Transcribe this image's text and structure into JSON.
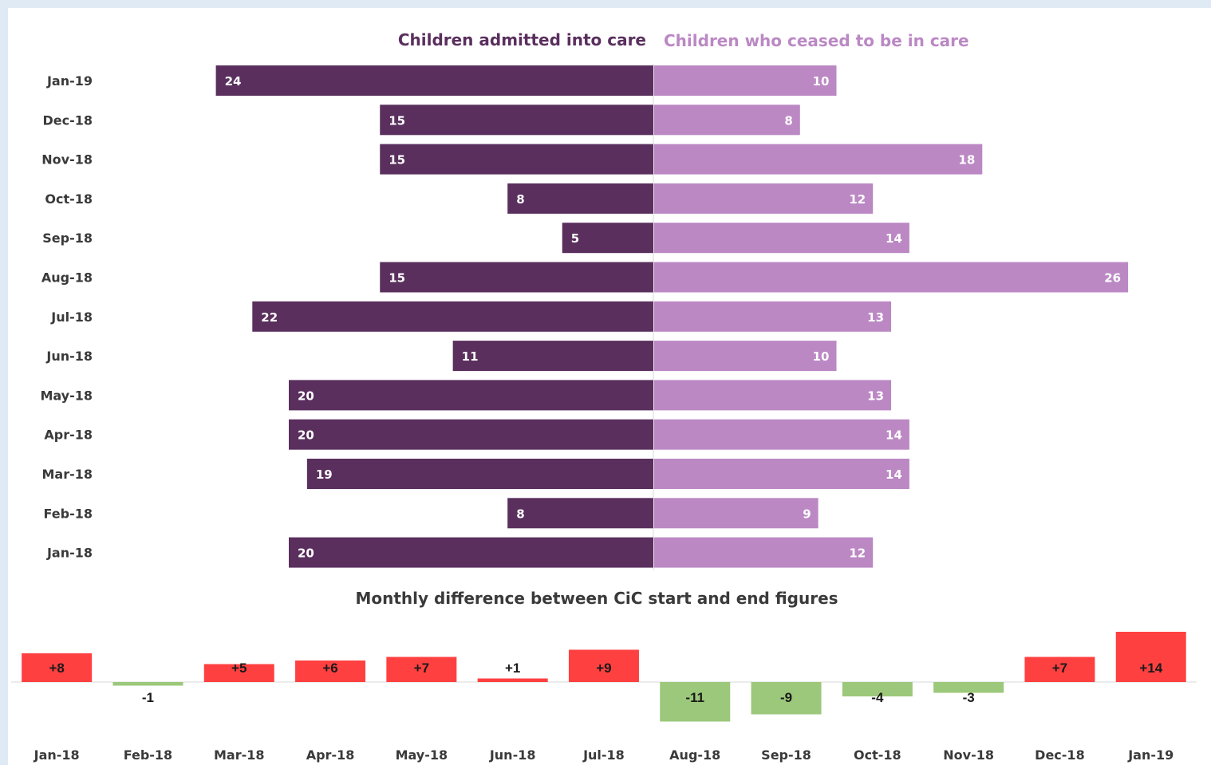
{
  "chart_data": [
    {
      "type": "bar",
      "orientation": "horizontal-butterfly",
      "categories": [
        "Jan-19",
        "Dec-18",
        "Nov-18",
        "Oct-18",
        "Sep-18",
        "Aug-18",
        "Jul-18",
        "Jun-18",
        "May-18",
        "Apr-18",
        "Mar-18",
        "Feb-18",
        "Jan-18"
      ],
      "series": [
        {
          "name": "Children admitted into care",
          "color": "#5a2f5e",
          "values": [
            24,
            15,
            15,
            8,
            5,
            15,
            22,
            11,
            20,
            20,
            19,
            8,
            20
          ]
        },
        {
          "name": "Children who ceased to be in care",
          "color": "#bb88c4",
          "values": [
            10,
            8,
            18,
            12,
            14,
            26,
            13,
            10,
            13,
            14,
            14,
            9,
            12
          ]
        }
      ],
      "grid": false
    },
    {
      "type": "bar",
      "title": "Monthly difference between CiC start and end figures",
      "categories": [
        "Jan-18",
        "Feb-18",
        "Mar-18",
        "Apr-18",
        "May-18",
        "Jun-18",
        "Jul-18",
        "Aug-18",
        "Sep-18",
        "Oct-18",
        "Nov-18",
        "Dec-18",
        "Jan-19"
      ],
      "values": [
        8,
        -1,
        5,
        6,
        7,
        1,
        9,
        -11,
        -9,
        -4,
        -3,
        7,
        14
      ],
      "labels": [
        "+8",
        "-1",
        "+5",
        "+6",
        "+7",
        "+1",
        "+9",
        "-11",
        "-9",
        "-4",
        "-3",
        "+7",
        "+14"
      ],
      "colors": {
        "positive": "#ff4040",
        "negative": "#9bc87a"
      },
      "grid": false
    }
  ]
}
